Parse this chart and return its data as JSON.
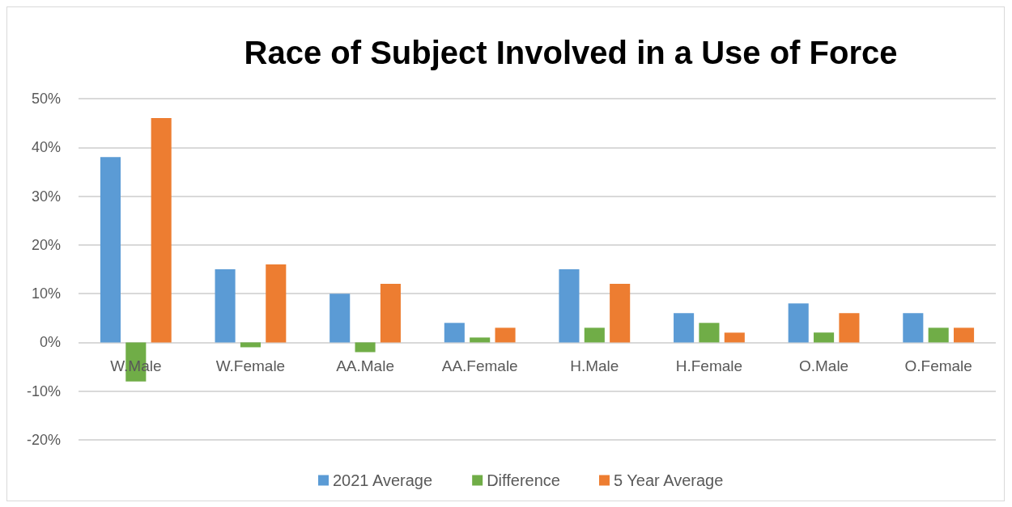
{
  "chart_data": {
    "type": "bar",
    "title": "Race of Subject Involved in a Use of Force",
    "categories": [
      "W.Male",
      "W.Female",
      "AA.Male",
      "AA.Female",
      "H.Male",
      "H.Female",
      "O.Male",
      "O.Female"
    ],
    "series": [
      {
        "name": "2021 Average",
        "color": "#5b9bd5",
        "values": [
          38,
          15,
          10,
          4,
          15,
          6,
          8,
          6
        ]
      },
      {
        "name": "Difference",
        "color": "#70ad47",
        "values": [
          -8,
          -1,
          -2,
          1,
          3,
          4,
          2,
          3
        ]
      },
      {
        "name": "5 Year Average",
        "color": "#ed7d31",
        "values": [
          46,
          16,
          12,
          3,
          12,
          2,
          6,
          3
        ]
      }
    ],
    "ylim": [
      -20,
      50
    ],
    "yticks": [
      {
        "value": -20,
        "label": "-20%"
      },
      {
        "value": -10,
        "label": "-10%"
      },
      {
        "value": 0,
        "label": "0%"
      },
      {
        "value": 10,
        "label": "10%"
      },
      {
        "value": 20,
        "label": "20%"
      },
      {
        "value": 30,
        "label": "30%"
      },
      {
        "value": 40,
        "label": "40%"
      },
      {
        "value": 50,
        "label": "50%"
      }
    ],
    "grid": "y",
    "legend": "bottom"
  }
}
